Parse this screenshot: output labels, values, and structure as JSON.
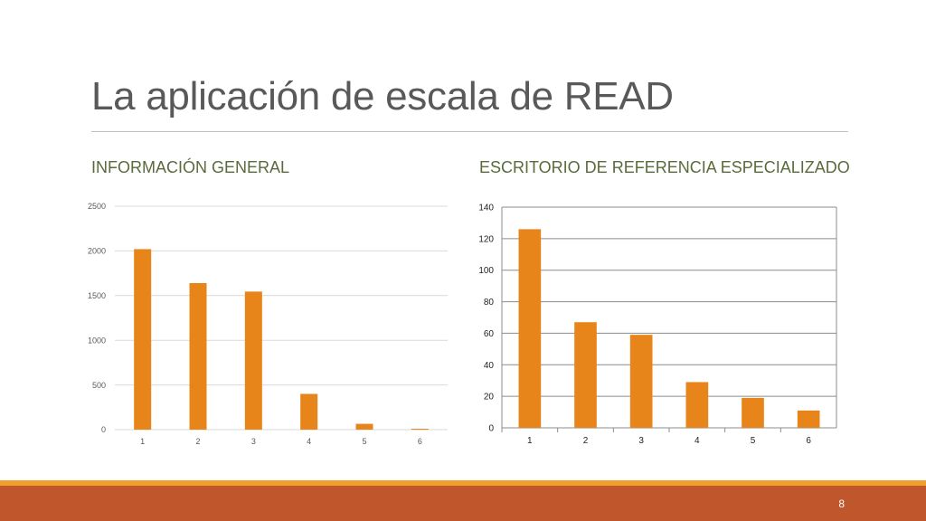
{
  "slide": {
    "title": "La aplicación de escala de READ",
    "page_number": "8",
    "accent_color": "#c0562b",
    "accent_stripe": "#f0a12c"
  },
  "sections": [
    {
      "heading": "INFORMACIÓN GENERAL"
    },
    {
      "heading": "ESCRITORIO DE REFERENCIA ESPECIALIZADO"
    }
  ],
  "chart_data": [
    {
      "type": "bar",
      "title": "",
      "xlabel": "",
      "ylabel": "",
      "categories": [
        "1",
        "2",
        "3",
        "4",
        "5",
        "6"
      ],
      "values": [
        2020,
        1640,
        1545,
        400,
        65,
        10
      ],
      "ylim": [
        0,
        2500
      ],
      "yticks": [
        0,
        500,
        1000,
        1500,
        2000,
        2500
      ],
      "grid": true,
      "bar_color": "#e8851a"
    },
    {
      "type": "bar",
      "title": "",
      "xlabel": "",
      "ylabel": "",
      "categories": [
        "1",
        "2",
        "3",
        "4",
        "5",
        "6"
      ],
      "values": [
        126,
        67,
        59,
        29,
        19,
        11
      ],
      "ylim": [
        0,
        140
      ],
      "yticks": [
        0,
        20,
        40,
        60,
        80,
        100,
        120,
        140
      ],
      "grid": true,
      "bar_color": "#e8851a"
    }
  ]
}
